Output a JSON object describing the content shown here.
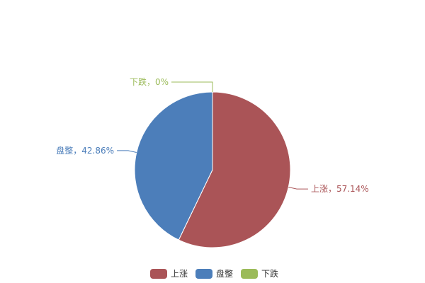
{
  "chart_data": {
    "type": "pie",
    "slices": [
      {
        "name": "上涨",
        "value": 57.14,
        "label": "上涨，57.14%",
        "color": "#AA5457"
      },
      {
        "name": "盘整",
        "value": 42.86,
        "label": "盘整，42.86%",
        "color": "#4C7EBA"
      },
      {
        "name": "下跌",
        "value": 0,
        "label": "下跌，0%",
        "color": "#9BBB59"
      }
    ],
    "legend": {
      "position": "bottom",
      "items": [
        "上涨",
        "盘整",
        "下跌"
      ]
    }
  }
}
